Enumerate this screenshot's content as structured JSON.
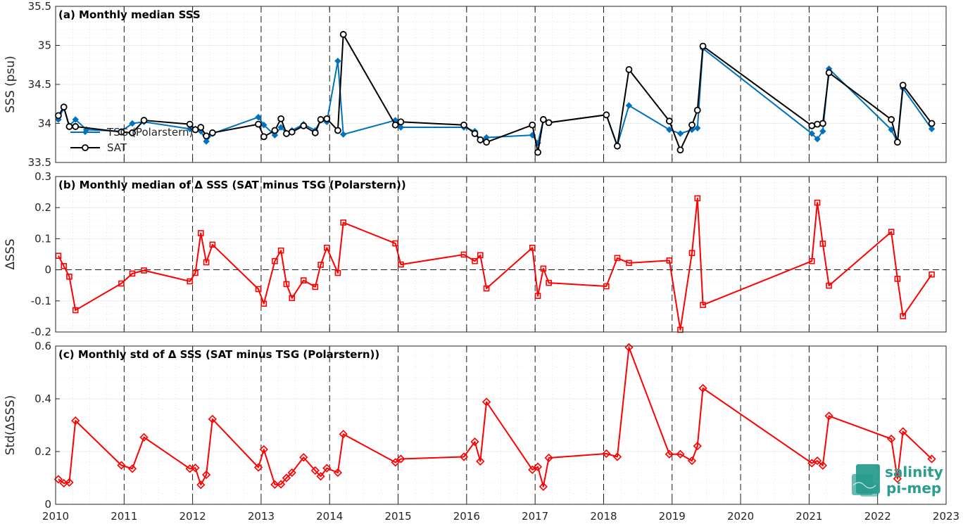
{
  "chart_data": [
    {
      "type": "line",
      "title": "(a) Monthly median SSS",
      "xlabel": "",
      "ylabel": "SSS (psu)",
      "xlim": [
        2010,
        2023
      ],
      "ylim": [
        33.5,
        35.5
      ],
      "xticks": [
        "2010",
        "2011",
        "2012",
        "2013",
        "2014",
        "2015",
        "2016",
        "2017",
        "2018",
        "2019",
        "2020",
        "2021",
        "2022",
        "2023"
      ],
      "yticks": [
        "33.5",
        "34",
        "34.5",
        "35",
        "35.5"
      ],
      "grid": true,
      "legend": "bottom-left",
      "series": [
        {
          "name": "TSG (Polarstern)",
          "color": "#0072bd",
          "marker": "diamond",
          "x": [
            2010.04,
            2010.12,
            2010.2,
            2010.29,
            2010.45,
            2010.96,
            2011.12,
            2011.29,
            2011.96,
            2012.04,
            2012.12,
            2012.2,
            2012.29,
            2012.96,
            2013.04,
            2013.2,
            2013.29,
            2013.37,
            2013.45,
            2013.62,
            2013.79,
            2013.87,
            2013.96,
            2014.12,
            2014.2,
            2014.96,
            2015.04,
            2015.96,
            2016.12,
            2016.2,
            2016.29,
            2016.96,
            2017.04,
            2017.12,
            2017.2,
            2018.04,
            2018.2,
            2018.37,
            2018.96,
            2019.12,
            2019.29,
            2019.37,
            2019.45,
            2021.04,
            2021.12,
            2021.2,
            2021.29,
            2022.2,
            2022.29,
            2022.37,
            2022.79
          ],
          "values": [
            34.05,
            34.2,
            33.97,
            34.05,
            33.92,
            33.9,
            34.0,
            34.02,
            33.93,
            33.93,
            33.9,
            33.77,
            33.87,
            34.08,
            33.98,
            33.85,
            33.95,
            33.88,
            33.91,
            33.99,
            33.91,
            34.04,
            34.02,
            34.8,
            33.86,
            34.04,
            33.95,
            33.95,
            33.9,
            33.78,
            33.82,
            33.85,
            33.75,
            34.04,
            34.01,
            34.11,
            33.72,
            34.23,
            33.92,
            33.87,
            33.92,
            33.94,
            34.96,
            33.87,
            33.8,
            33.9,
            34.7,
            33.92,
            33.76,
            34.45,
            33.93
          ]
        },
        {
          "name": "SAT",
          "color": "#000000",
          "marker": "circle",
          "x": [
            2010.04,
            2010.12,
            2010.2,
            2010.29,
            2010.96,
            2011.12,
            2011.29,
            2011.96,
            2012.04,
            2012.12,
            2012.2,
            2012.29,
            2012.96,
            2013.04,
            2013.2,
            2013.29,
            2013.37,
            2013.45,
            2013.62,
            2013.79,
            2013.87,
            2013.96,
            2014.12,
            2014.2,
            2014.96,
            2015.04,
            2015.96,
            2016.12,
            2016.2,
            2016.29,
            2016.96,
            2017.04,
            2017.12,
            2017.2,
            2018.04,
            2018.2,
            2018.37,
            2018.96,
            2019.12,
            2019.29,
            2019.37,
            2019.45,
            2021.04,
            2021.12,
            2021.2,
            2021.29,
            2022.2,
            2022.29,
            2022.37,
            2022.79
          ],
          "values": [
            34.1,
            34.21,
            33.96,
            33.96,
            33.89,
            33.88,
            34.04,
            33.99,
            33.92,
            33.95,
            33.84,
            33.88,
            33.99,
            33.83,
            33.91,
            34.06,
            33.87,
            33.89,
            33.97,
            33.88,
            34.05,
            34.06,
            33.91,
            35.14,
            33.98,
            34.02,
            33.98,
            33.87,
            33.79,
            33.76,
            33.98,
            33.63,
            34.05,
            34.01,
            34.11,
            33.71,
            34.69,
            34.03,
            33.66,
            33.98,
            34.17,
            34.99,
            33.97,
            33.99,
            34.0,
            34.65,
            34.05,
            33.76,
            34.49,
            34.0
          ]
        }
      ]
    },
    {
      "type": "line",
      "title": "(b) Monthly median of Δ SSS (SAT minus TSG (Polarstern))",
      "xlabel": "",
      "ylabel": "ΔSSS",
      "xlim": [
        2010,
        2023
      ],
      "ylim": [
        -0.2,
        0.3
      ],
      "yticks": [
        "-0.2",
        "-0.1",
        "0",
        "0.1",
        "0.2",
        "0.3"
      ],
      "grid": true,
      "reference_line": 0,
      "series": [
        {
          "color": "#ff0000",
          "marker": "square",
          "x": [
            2010.04,
            2010.12,
            2010.2,
            2010.29,
            2010.96,
            2011.12,
            2011.29,
            2011.96,
            2012.04,
            2012.12,
            2012.2,
            2012.29,
            2012.96,
            2013.04,
            2013.2,
            2013.29,
            2013.37,
            2013.45,
            2013.62,
            2013.79,
            2013.87,
            2013.96,
            2014.12,
            2014.2,
            2014.96,
            2015.04,
            2015.96,
            2016.12,
            2016.2,
            2016.29,
            2016.96,
            2017.04,
            2017.12,
            2017.2,
            2018.04,
            2018.2,
            2018.37,
            2018.96,
            2019.12,
            2019.29,
            2019.37,
            2019.45,
            2021.04,
            2021.12,
            2021.2,
            2021.29,
            2022.2,
            2022.29,
            2022.37,
            2022.79
          ],
          "values": [
            0.045,
            0.012,
            -0.022,
            -0.13,
            -0.044,
            -0.012,
            -0.002,
            -0.037,
            -0.01,
            0.118,
            0.024,
            0.081,
            -0.062,
            -0.109,
            0.028,
            0.062,
            -0.046,
            -0.091,
            -0.034,
            -0.055,
            0.016,
            0.071,
            -0.01,
            0.152,
            0.085,
            0.017,
            0.049,
            0.028,
            0.047,
            -0.06,
            0.071,
            -0.084,
            0.004,
            -0.042,
            -0.053,
            0.038,
            0.022,
            0.03,
            -0.193,
            0.054,
            0.23,
            -0.113,
            0.028,
            0.216,
            0.084,
            -0.051,
            0.122,
            -0.029,
            -0.149,
            -0.015
          ]
        }
      ]
    },
    {
      "type": "line",
      "title": "(c) Monthly std of Δ SSS (SAT minus TSG (Polarstern))",
      "xlabel": "",
      "ylabel": "Std(ΔSSS)",
      "xlim": [
        2010,
        2023
      ],
      "ylim": [
        0,
        0.6
      ],
      "yticks": [
        "0",
        "0.2",
        "0.4",
        "0.6"
      ],
      "grid": true,
      "series": [
        {
          "color": "#ff0000",
          "marker": "diamond",
          "x": [
            2010.04,
            2010.12,
            2010.2,
            2010.29,
            2010.96,
            2011.12,
            2011.29,
            2011.96,
            2012.04,
            2012.12,
            2012.2,
            2012.29,
            2012.96,
            2013.04,
            2013.2,
            2013.29,
            2013.37,
            2013.45,
            2013.62,
            2013.79,
            2013.87,
            2013.96,
            2014.12,
            2014.2,
            2014.96,
            2015.04,
            2015.96,
            2016.12,
            2016.2,
            2016.29,
            2016.96,
            2017.04,
            2017.12,
            2017.2,
            2018.04,
            2018.2,
            2018.37,
            2018.96,
            2019.12,
            2019.29,
            2019.37,
            2019.45,
            2021.04,
            2021.12,
            2021.2,
            2021.29,
            2022.2,
            2022.29,
            2022.37,
            2022.79
          ],
          "values": [
            0.095,
            0.08,
            0.083,
            0.317,
            0.148,
            0.135,
            0.254,
            0.135,
            0.138,
            0.074,
            0.112,
            0.323,
            0.14,
            0.208,
            0.075,
            0.076,
            0.1,
            0.12,
            0.178,
            0.128,
            0.106,
            0.137,
            0.12,
            0.266,
            0.159,
            0.172,
            0.18,
            0.237,
            0.163,
            0.388,
            0.131,
            0.142,
            0.067,
            0.176,
            0.192,
            0.18,
            0.595,
            0.19,
            0.19,
            0.165,
            0.221,
            0.44,
            0.156,
            0.165,
            0.147,
            0.335,
            0.248,
            0.097,
            0.276,
            0.172
          ]
        }
      ]
    }
  ],
  "logo": {
    "line1": "salinity",
    "line2": "pi-mep",
    "color": "#2a9d8f"
  }
}
